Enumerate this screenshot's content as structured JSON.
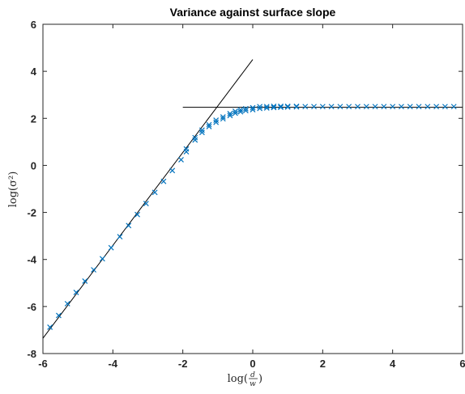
{
  "chart_data": {
    "type": "scatter",
    "title": "Variance against surface slope",
    "xlabel": "log(d/w)",
    "xlabel_parts": {
      "prefix": "log(",
      "numerator": "d",
      "denominator": "w",
      "suffix": ")"
    },
    "ylabel": "log(σ²)",
    "xlim": [
      -6,
      6
    ],
    "ylim": [
      -8,
      6
    ],
    "xticks": [
      -6,
      -4,
      -2,
      0,
      2,
      4,
      6
    ],
    "yticks": [
      -8,
      -6,
      -4,
      -2,
      0,
      2,
      4,
      6
    ],
    "grid": false,
    "legend": "none",
    "colors": {
      "markers": "#0072bd",
      "lines": "#000000",
      "axes": "#262626"
    },
    "series": [
      {
        "marker": "x",
        "points": [
          [
            -5.8,
            -6.88
          ],
          [
            -5.55,
            -6.38
          ],
          [
            -5.3,
            -5.88
          ],
          [
            -5.05,
            -5.4
          ],
          [
            -4.8,
            -4.92
          ],
          [
            -4.55,
            -4.44
          ],
          [
            -4.3,
            -3.97
          ],
          [
            -4.05,
            -3.5
          ],
          [
            -3.8,
            -3.03
          ],
          [
            -3.55,
            -2.56
          ],
          [
            -3.3,
            -2.09
          ],
          [
            -3.05,
            -1.62
          ],
          [
            -2.8,
            -1.15
          ],
          [
            -2.55,
            -0.68
          ],
          [
            -2.3,
            -0.22
          ],
          [
            -2.05,
            0.24
          ],
          [
            -1.9,
            0.58
          ],
          [
            -1.9,
            0.7
          ],
          [
            -1.65,
            1.08
          ],
          [
            -1.65,
            1.18
          ],
          [
            -1.45,
            1.4
          ],
          [
            -1.45,
            1.5
          ],
          [
            -1.25,
            1.65
          ],
          [
            -1.25,
            1.73
          ],
          [
            -1.05,
            1.83
          ],
          [
            -1.05,
            1.92
          ],
          [
            -0.85,
            1.98
          ],
          [
            -0.85,
            2.06
          ],
          [
            -0.65,
            2.12
          ],
          [
            -0.65,
            2.2
          ],
          [
            -0.5,
            2.22
          ],
          [
            -0.5,
            2.3
          ],
          [
            -0.35,
            2.28
          ],
          [
            -0.35,
            2.36
          ],
          [
            -0.2,
            2.33
          ],
          [
            -0.2,
            2.41
          ],
          [
            0.0,
            2.37
          ],
          [
            0.0,
            2.45
          ],
          [
            0.2,
            2.42
          ],
          [
            0.2,
            2.5
          ],
          [
            0.4,
            2.44
          ],
          [
            0.4,
            2.5
          ],
          [
            0.6,
            2.46
          ],
          [
            0.6,
            2.51
          ],
          [
            0.8,
            2.47
          ],
          [
            0.8,
            2.51
          ],
          [
            1.0,
            2.48
          ],
          [
            1.0,
            2.51
          ],
          [
            1.25,
            2.49
          ],
          [
            1.25,
            2.51
          ],
          [
            1.5,
            2.5
          ],
          [
            1.75,
            2.5
          ],
          [
            2.0,
            2.5
          ],
          [
            2.25,
            2.5
          ],
          [
            2.5,
            2.5
          ],
          [
            2.75,
            2.5
          ],
          [
            3.0,
            2.5
          ],
          [
            3.25,
            2.5
          ],
          [
            3.5,
            2.5
          ],
          [
            3.75,
            2.5
          ],
          [
            4.0,
            2.5
          ],
          [
            4.25,
            2.5
          ],
          [
            4.5,
            2.5
          ],
          [
            4.75,
            2.5
          ],
          [
            5.0,
            2.5
          ],
          [
            5.25,
            2.5
          ],
          [
            5.5,
            2.5
          ],
          [
            5.75,
            2.5
          ]
        ]
      }
    ],
    "lines": [
      {
        "style": "solid",
        "points": [
          [
            -6,
            -7.35
          ],
          [
            0,
            4.5
          ]
        ]
      },
      {
        "style": "solid",
        "points": [
          [
            -2,
            2.47
          ],
          [
            6,
            2.47
          ]
        ]
      }
    ]
  }
}
